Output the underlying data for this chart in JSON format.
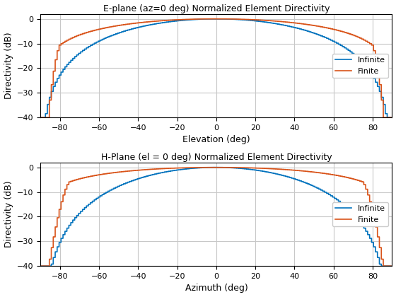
{
  "title1": "E-plane (az=0 deg) Normalized Element Directivity",
  "title2": "H-Plane (el = 0 deg) Normalized Element Directivity",
  "xlabel1": "Elevation (deg)",
  "xlabel2": "Azimuth (deg)",
  "ylabel": "Directivity (dB)",
  "xlim": [
    -90,
    90
  ],
  "ylim": [
    -40,
    2
  ],
  "yticks": [
    0,
    -10,
    -20,
    -30,
    -40
  ],
  "xticks": [
    -80,
    -60,
    -40,
    -20,
    0,
    20,
    40,
    60,
    80
  ],
  "color_infinite": "#0072BD",
  "color_finite": "#D95319",
  "legend_labels": [
    "Infinite",
    "Finite"
  ],
  "linewidth": 1.2,
  "background_color": "#FFFFFF",
  "grid_color": "#C8C8C8"
}
